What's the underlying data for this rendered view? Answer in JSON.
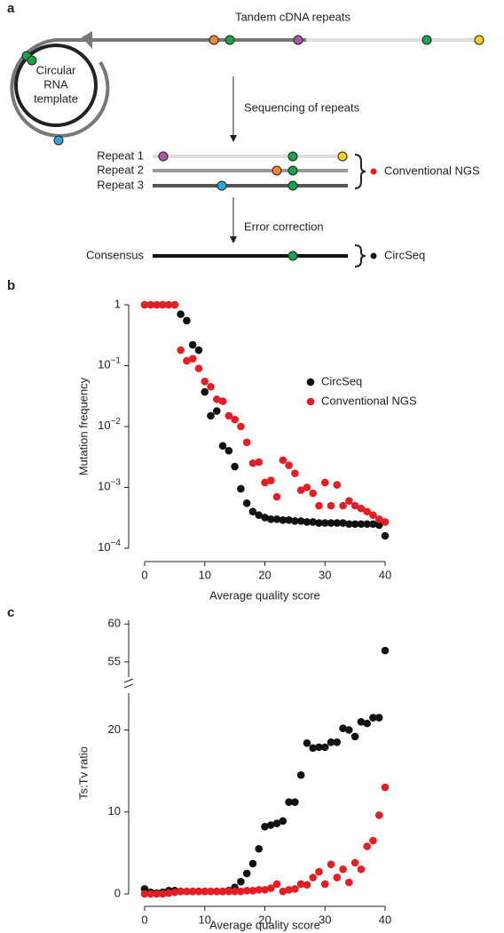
{
  "panel_labels": [
    "a",
    "b",
    "c"
  ],
  "diagram": {
    "tandem_label": "Tandem cDNA repeats",
    "template_label": [
      "Circular",
      "RNA",
      "template"
    ],
    "step1": "Sequencing of repeats",
    "repeats": [
      "Repeat 1",
      "Repeat 2",
      "Repeat 3"
    ],
    "ngs_label": "Conventional NGS",
    "step2": "Error correction",
    "consensus": "Consensus",
    "circseq_label": "CircSeq"
  },
  "chart_data": [
    {
      "type": "scatter",
      "ylabel": "Mutation frequency",
      "xlabel": "Average quality score",
      "log_y": true,
      "legend": "right",
      "x": [
        0,
        1,
        2,
        3,
        4,
        5,
        6,
        7,
        8,
        9,
        10,
        11,
        12,
        13,
        14,
        15,
        16,
        17,
        18,
        19,
        20,
        21,
        22,
        23,
        24,
        25,
        26,
        27,
        28,
        29,
        30,
        31,
        32,
        33,
        34,
        35,
        36,
        37,
        38,
        39,
        40
      ],
      "xlim": [
        0,
        40
      ],
      "xticks": [
        0,
        10,
        20,
        30,
        40
      ],
      "ylim": [
        0.0001,
        1
      ],
      "yticks": [
        1,
        {
          "value": 0.1,
          "label": "10",
          "exponent": "−1"
        },
        {
          "value": 0.01,
          "label": "10",
          "exponent": "−2"
        },
        {
          "value": 0.001,
          "label": "10",
          "exponent": "−3"
        },
        {
          "value": 0.0001,
          "label": "10",
          "exponent": "−4"
        }
      ],
      "series": [
        {
          "name": "CircSeq",
          "color": "#111111",
          "values": [
            1,
            1,
            1,
            1,
            1,
            1,
            0.7,
            0.55,
            0.22,
            0.18,
            0.037,
            0.015,
            0.018,
            0.0048,
            0.004,
            0.0022,
            0.00095,
            0.00055,
            0.0004,
            0.00035,
            0.00032,
            0.0003,
            0.0003,
            0.00029,
            0.00029,
            0.00028,
            0.00028,
            0.00027,
            0.00027,
            0.00026,
            0.00026,
            0.00026,
            0.00026,
            0.00026,
            0.00025,
            0.00025,
            0.00025,
            0.00025,
            0.00025,
            0.00024,
            0.00016
          ]
        },
        {
          "name": "Conventional NGS",
          "color": "#e31e24",
          "values": [
            1,
            1,
            1,
            1,
            1,
            1,
            0.18,
            0.12,
            0.13,
            0.09,
            0.055,
            0.045,
            0.028,
            0.026,
            0.015,
            0.013,
            0.01,
            0.0055,
            0.0025,
            0.0026,
            0.0012,
            0.0013,
            0.0007,
            0.0028,
            0.0023,
            0.0017,
            0.0009,
            0.001,
            0.0008,
            0.0005,
            0.0012,
            0.0005,
            0.0011,
            0.0005,
            0.0006,
            0.0005,
            0.00045,
            0.0004,
            0.00035,
            0.0003,
            0.00027
          ]
        }
      ]
    },
    {
      "type": "scatter",
      "ylabel": "Ts:Tv ratio",
      "xlabel": "Average quality score",
      "y_break": true,
      "x": [
        0,
        1,
        2,
        3,
        4,
        5,
        6,
        7,
        8,
        9,
        10,
        11,
        12,
        13,
        14,
        15,
        16,
        17,
        18,
        19,
        20,
        21,
        22,
        23,
        24,
        25,
        26,
        27,
        28,
        29,
        30,
        31,
        32,
        33,
        34,
        35,
        36,
        37,
        38,
        39,
        40
      ],
      "xlim": [
        0,
        40
      ],
      "xticks": [
        0,
        10,
        20,
        30,
        40
      ],
      "ylim": [
        0,
        24.5
      ],
      "ylim_upper": [
        53,
        60.5
      ],
      "yticks": [
        0,
        10,
        20,
        55,
        60
      ],
      "series": [
        {
          "name": "CircSeq",
          "color": "#111111",
          "values": [
            0.6,
            0.2,
            0.1,
            0.2,
            0.4,
            0.4,
            0.3,
            0.3,
            0.3,
            0.3,
            0.3,
            0.3,
            0.3,
            0.3,
            0.4,
            0.8,
            1.5,
            2.5,
            3.7,
            5.5,
            8.2,
            8.4,
            8.6,
            8.9,
            11.2,
            11.2,
            14.5,
            18.4,
            17.8,
            17.9,
            17.9,
            18.5,
            18.5,
            20.2,
            20,
            19.2,
            21,
            20.8,
            21.5,
            21.5,
            56.5
          ]
        },
        {
          "name": "Conventional NGS",
          "color": "#e31e24",
          "values": [
            0,
            0,
            0,
            0,
            0.1,
            0.2,
            0.3,
            0.3,
            0.3,
            0.3,
            0.3,
            0.3,
            0.3,
            0.3,
            0.3,
            0.3,
            0.3,
            0.4,
            0.4,
            0.5,
            0.5,
            0.7,
            1.2,
            0.3,
            0.5,
            0.6,
            1.2,
            1.1,
            2,
            2.7,
            1.2,
            3.6,
            2,
            3,
            1.4,
            3.8,
            3,
            5.8,
            6.5,
            9.6,
            13
          ]
        }
      ]
    }
  ]
}
